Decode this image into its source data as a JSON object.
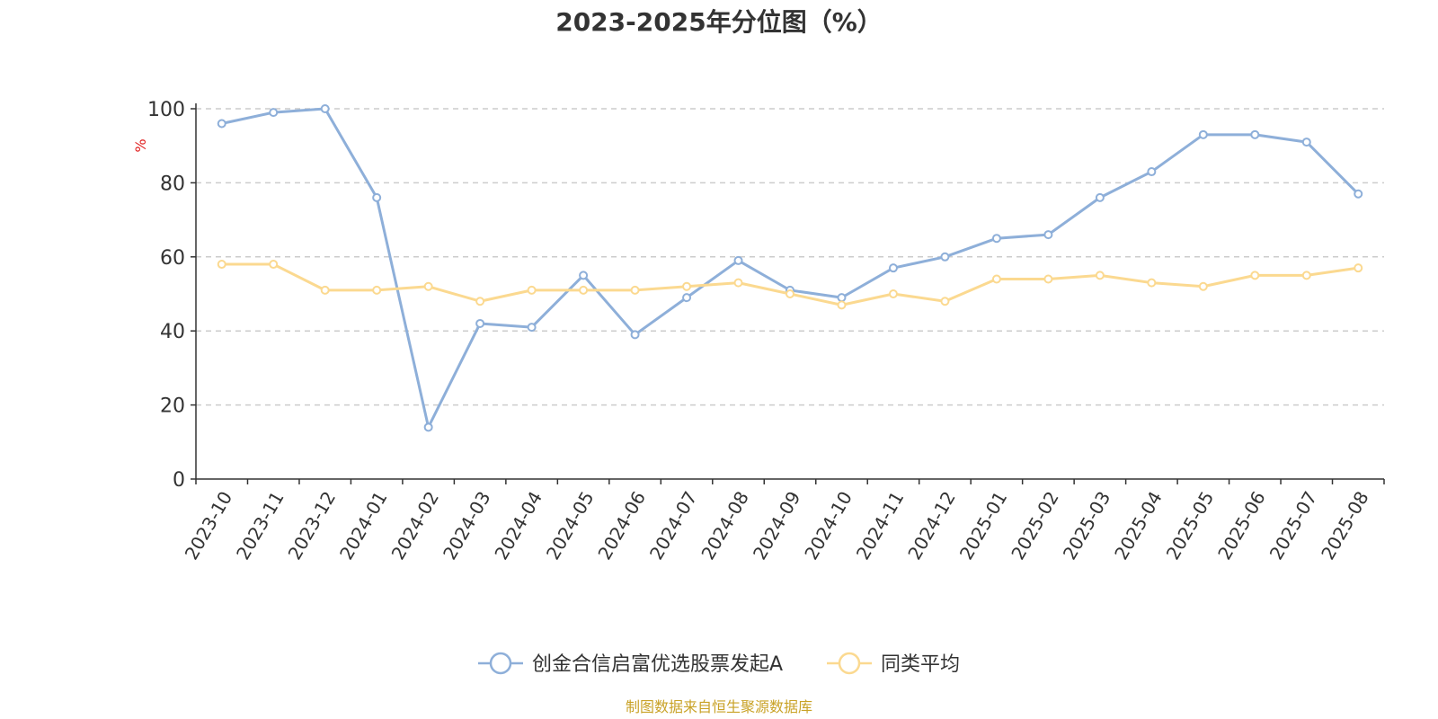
{
  "chart_data": {
    "type": "line",
    "title": "2023-2025年分位图（%）",
    "ylabel": "%",
    "ylim": [
      0,
      100
    ],
    "yticks": [
      0,
      20,
      40,
      60,
      80,
      100
    ],
    "grid": true,
    "legend_position": "bottom-center",
    "categories": [
      "2023-10",
      "2023-11",
      "2023-12",
      "2024-01",
      "2024-02",
      "2024-03",
      "2024-04",
      "2024-05",
      "2024-06",
      "2024-07",
      "2024-08",
      "2024-09",
      "2024-10",
      "2024-11",
      "2024-12",
      "2025-01",
      "2025-02",
      "2025-03",
      "2025-04",
      "2025-05",
      "2025-06",
      "2025-07",
      "2025-08"
    ],
    "series": [
      {
        "name": "创金合信启富优选股票发起A",
        "color": "#8eafd9",
        "values": [
          96,
          99,
          100,
          76,
          14,
          42,
          41,
          55,
          39,
          49,
          59,
          51,
          49,
          57,
          60,
          65,
          66,
          76,
          83,
          93,
          93,
          91,
          77
        ]
      },
      {
        "name": "同类平均",
        "color": "#fbd990",
        "values": [
          58,
          58,
          51,
          51,
          52,
          48,
          51,
          51,
          51,
          52,
          53,
          50,
          47,
          50,
          48,
          54,
          54,
          55,
          53,
          52,
          55,
          55,
          57
        ]
      }
    ]
  },
  "source": "制图数据来自恒生聚源数据库"
}
